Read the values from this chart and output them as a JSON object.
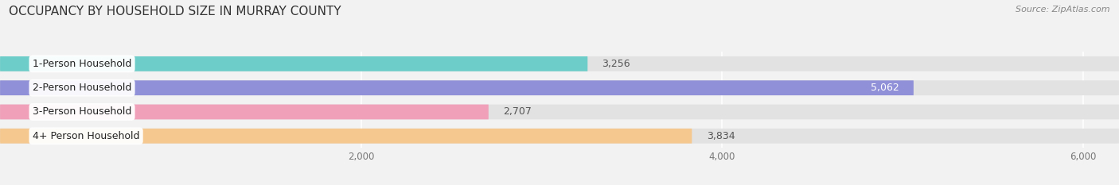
{
  "title": "OCCUPANCY BY HOUSEHOLD SIZE IN MURRAY COUNTY",
  "source": "Source: ZipAtlas.com",
  "categories": [
    "1-Person Household",
    "2-Person Household",
    "3-Person Household",
    "4+ Person Household"
  ],
  "values": [
    3256,
    5062,
    2707,
    3834
  ],
  "bar_colors": [
    "#6dcdc8",
    "#9090d8",
    "#f0a0b8",
    "#f5c890"
  ],
  "label_bg_color": "#ffffff",
  "background_color": "#f2f2f2",
  "bar_bg_color": "#e2e2e2",
  "xlim": [
    0,
    6200
  ],
  "xticks": [
    2000,
    4000,
    6000
  ],
  "xticklabels": [
    "2,000",
    "4,000",
    "6,000"
  ],
  "title_fontsize": 11,
  "source_fontsize": 8,
  "bar_label_fontsize": 9,
  "category_fontsize": 9,
  "bar_height": 0.62,
  "figsize": [
    14.06,
    2.33
  ],
  "dpi": 100
}
